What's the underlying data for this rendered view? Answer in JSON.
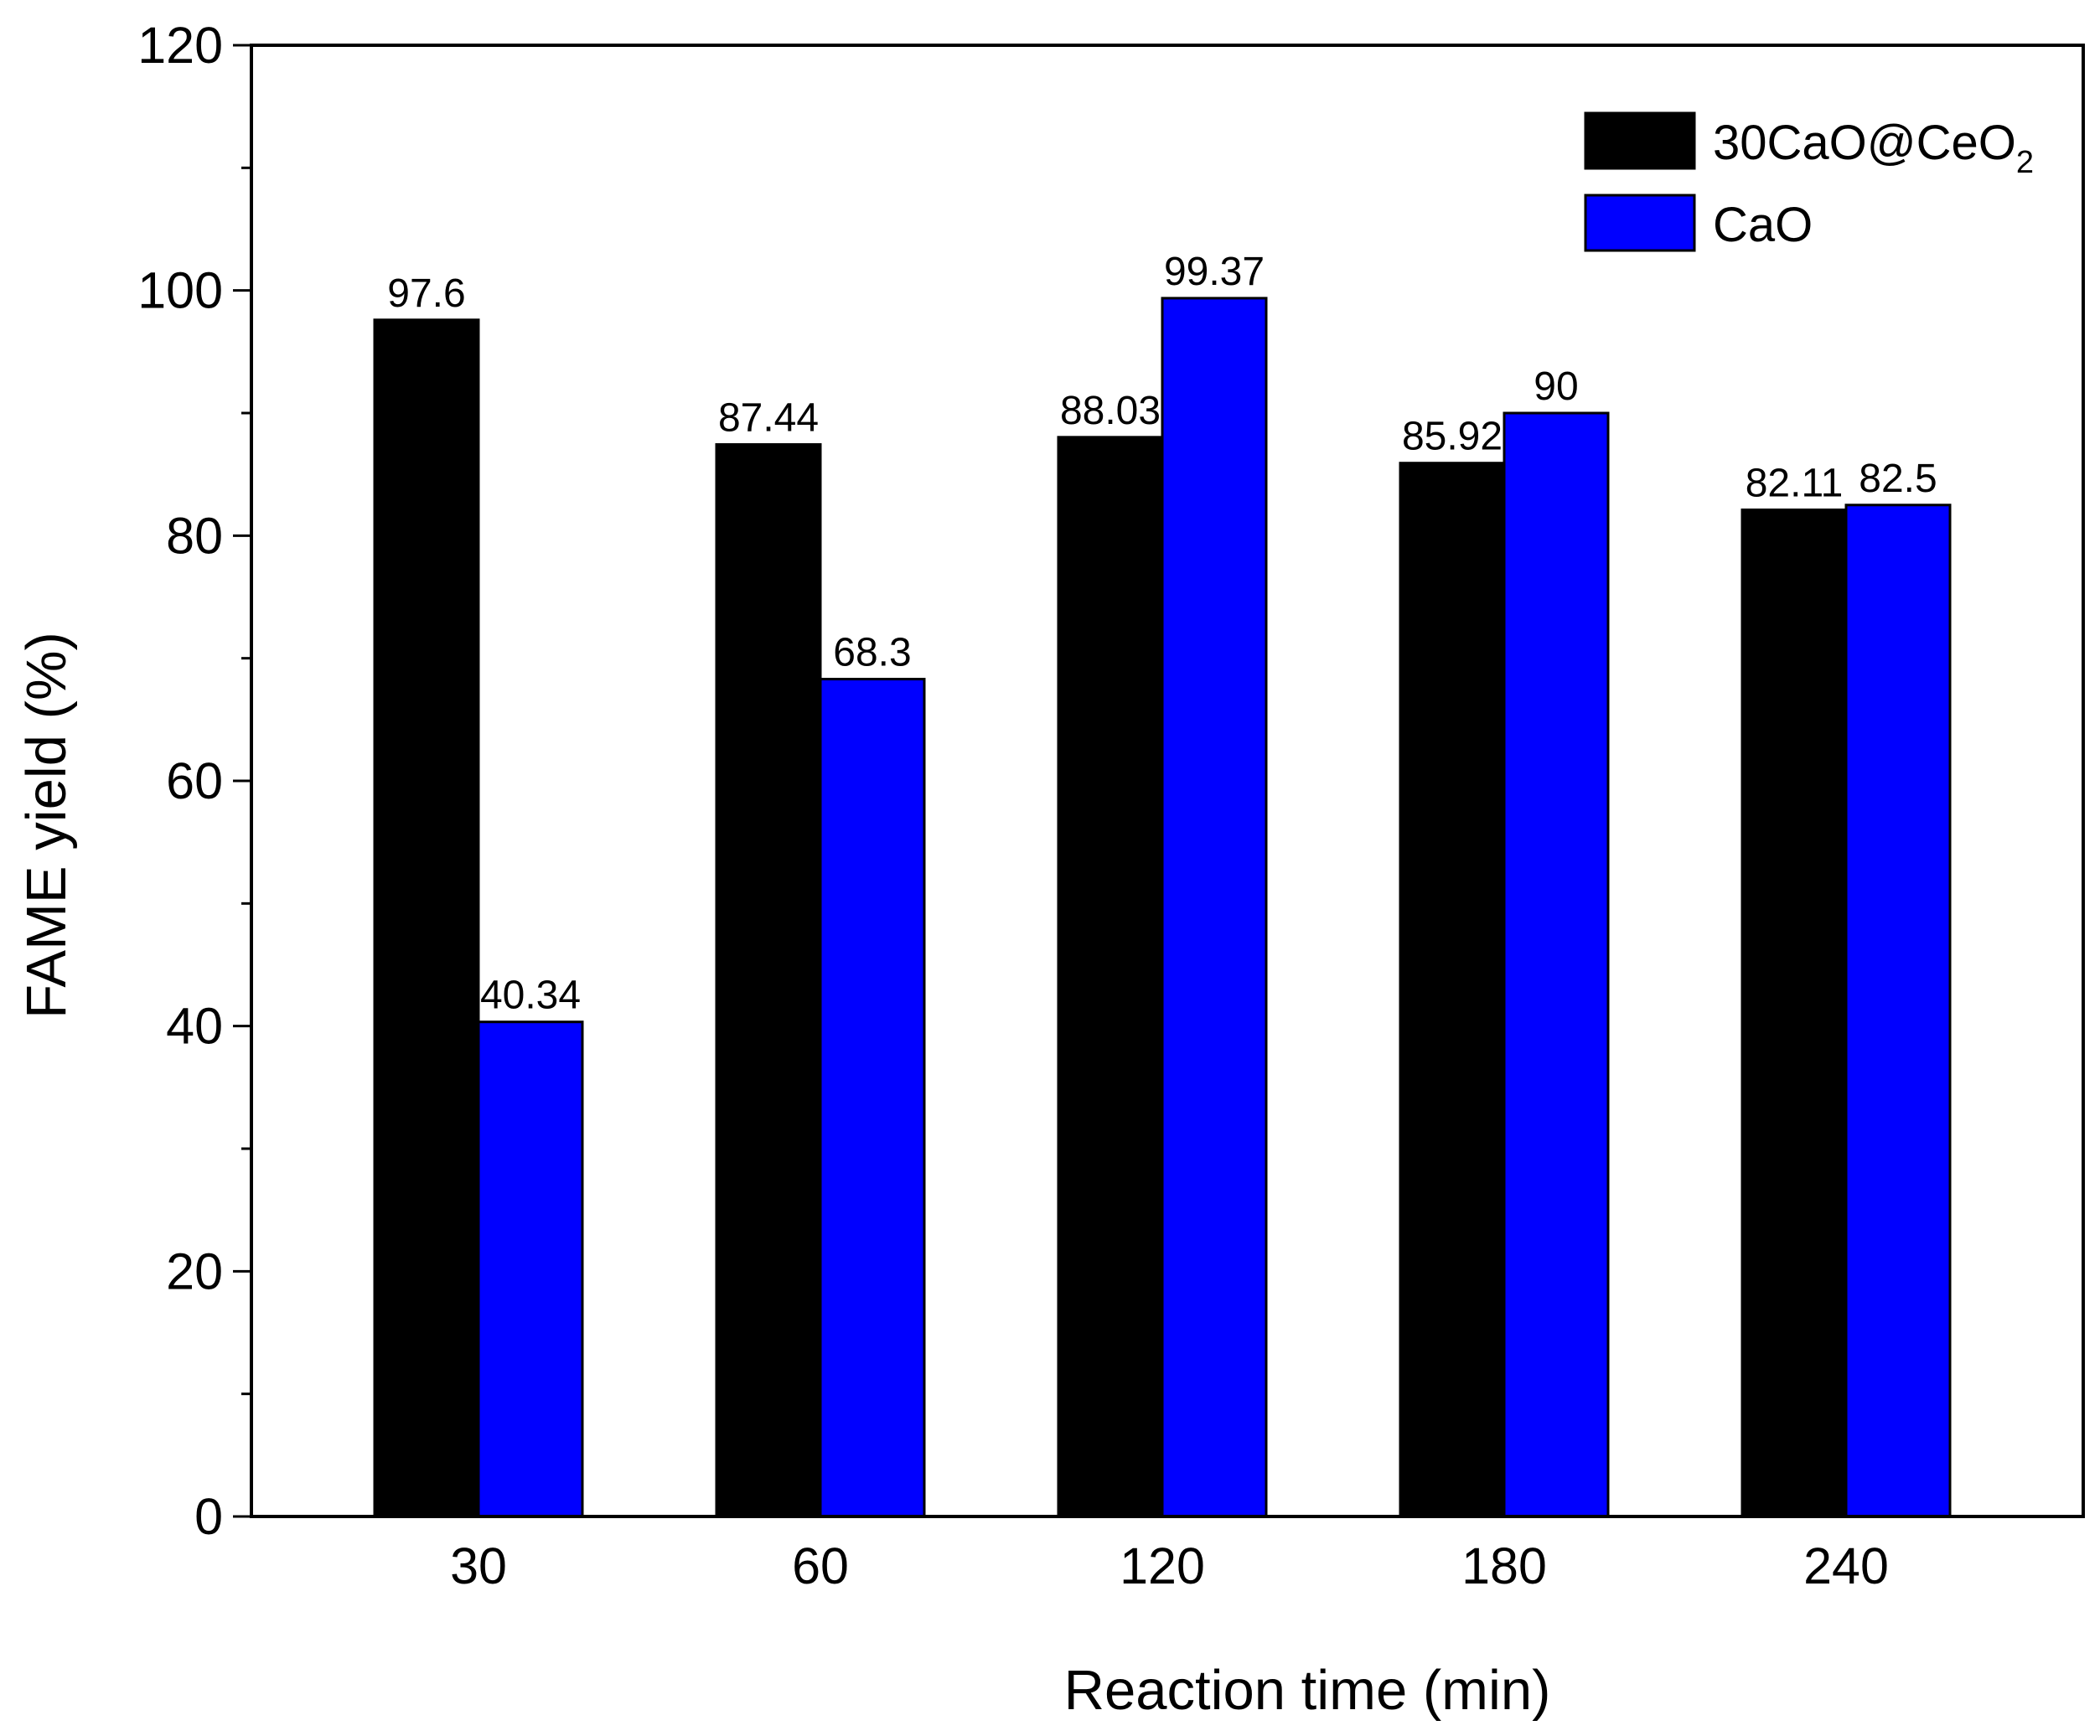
{
  "chart_data": {
    "type": "bar",
    "title": "",
    "xlabel": "Reaction time (min)",
    "ylabel": "FAME yield (%)",
    "categories": [
      "30",
      "60",
      "120",
      "180",
      "240"
    ],
    "series": [
      {
        "name": "30CaO@CeO",
        "name_subscript": "2",
        "color": "#000000",
        "values": [
          97.6,
          87.44,
          88.03,
          85.92,
          82.11
        ],
        "labels": [
          "97.6",
          "87.44",
          "88.03",
          "85.92",
          "82.11"
        ]
      },
      {
        "name": "CaO",
        "name_subscript": "",
        "color": "#0000ff",
        "values": [
          40.34,
          68.3,
          99.37,
          90,
          82.5
        ],
        "labels": [
          "40.34",
          "68.3",
          "99.37",
          "90",
          "82.5"
        ]
      }
    ],
    "ylim": [
      0,
      120
    ],
    "y_ticks": [
      0,
      20,
      40,
      60,
      80,
      100,
      120
    ],
    "y_minor_step": 10,
    "grid": false,
    "legend_position": "top-right"
  }
}
